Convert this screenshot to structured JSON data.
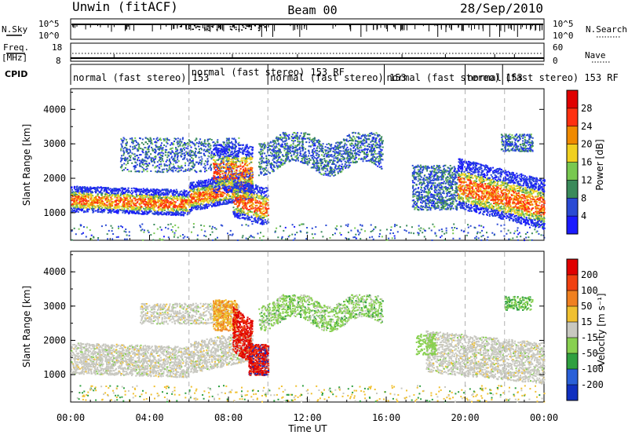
{
  "header": {
    "site": "Unwin (fitACF)",
    "beam": "Beam 00",
    "date": "28/Sep/2010"
  },
  "status_panels": {
    "nsky_label": "N.Sky",
    "nsearch_label": "N.Search",
    "freq_label": "Freq.",
    "freq_unit": "[MHz]",
    "nave_label": "Nave",
    "cpid_label": "CPID",
    "left_ticks_top": [
      "10^5",
      "10^0"
    ],
    "right_ticks_top": [
      "10^5",
      "10^0"
    ],
    "left_ticks_freq": [
      "18",
      "8"
    ],
    "right_ticks_nave": [
      "60",
      "0"
    ]
  },
  "cpid_segments": [
    {
      "label": "normal (fast stereo)  153",
      "start": 0.0,
      "row": 0
    },
    {
      "label": "normal (fast stereo) 153 RF",
      "start": 6.0,
      "row": 1
    },
    {
      "label": "normal (fast stereo) 153",
      "start": 10.0,
      "row": 0
    },
    {
      "label": "normal (fast stereo) 153",
      "start": 15.9,
      "row": 0
    },
    {
      "label": "normal",
      "start": 20.0,
      "row": 0
    },
    {
      "label": "(fast stereo)  153 RF",
      "start": 21.9,
      "row": 0
    }
  ],
  "chart_data": [
    {
      "type": "heatmap",
      "name": "power",
      "ylabel": "Slant Range [km]",
      "xlim": [
        0,
        24
      ],
      "ylim": [
        200,
        4600
      ],
      "yticks": [
        "1000",
        "2000",
        "3000",
        "4000"
      ],
      "colorbar": {
        "label": "Power [dB]",
        "ticks": [
          "4",
          "8",
          "12",
          "16",
          "20",
          "24",
          "28"
        ],
        "colors": [
          "#1a1aff",
          "#2a4ad4",
          "#3a8a5a",
          "#78c850",
          "#f0d020",
          "#f08a00",
          "#ff3010",
          "#e00000"
        ]
      },
      "echo_regions": [
        {
          "t": [
            0,
            9.2
          ],
          "range": [
            1050,
            1900
          ],
          "note": "main band"
        },
        {
          "t": [
            2.5,
            8.5
          ],
          "range": [
            2100,
            3300
          ],
          "note": "upper band"
        },
        {
          "t": [
            8.2,
            10.0
          ],
          "range": [
            900,
            2000
          ],
          "note": "descending streak"
        },
        {
          "t": [
            9.5,
            15.8
          ],
          "range": [
            2300,
            3300
          ],
          "note": "wavy band"
        },
        {
          "t": [
            17.3,
            24
          ],
          "range": [
            1100,
            2600
          ],
          "note": "evening band"
        },
        {
          "t": [
            21.8,
            23.4
          ],
          "range": [
            2800,
            3300
          ],
          "note": "evening upper"
        }
      ]
    },
    {
      "type": "heatmap",
      "name": "velocity",
      "ylabel": "Slant Range [km]",
      "xlabel": "Time UT",
      "xlim": [
        0,
        24
      ],
      "ylim": [
        200,
        4600
      ],
      "xticks": [
        "00:00",
        "04:00",
        "08:00",
        "12:00",
        "16:00",
        "20:00",
        "00:00"
      ],
      "yticks": [
        "1000",
        "2000",
        "3000",
        "4000"
      ],
      "colorbar": {
        "label": "Velocity [m s⁻¹]",
        "ticks": [
          "200",
          "100",
          "50",
          "15",
          "-15",
          "-50",
          "-100",
          "-200"
        ],
        "colors": [
          "#1030c0",
          "#2a60d8",
          "#30a040",
          "#88d050",
          "#c8c8c0",
          "#f0c030",
          "#f08020",
          "#f04010",
          "#e00000"
        ]
      }
    }
  ],
  "colors": {
    "ground_scatter": "#c8c8c0",
    "dashed_lines": "#b0b0b0"
  }
}
